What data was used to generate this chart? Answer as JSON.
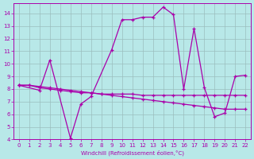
{
  "xlabel": "Windchill (Refroidissement éolien,°C)",
  "xlim": [
    -0.5,
    22.5
  ],
  "ylim": [
    4,
    14.8
  ],
  "yticks": [
    4,
    5,
    6,
    7,
    8,
    9,
    10,
    11,
    12,
    13,
    14
  ],
  "xticks": [
    0,
    1,
    2,
    3,
    4,
    5,
    6,
    7,
    8,
    9,
    10,
    11,
    12,
    13,
    14,
    15,
    16,
    17,
    18,
    19,
    20,
    21,
    22
  ],
  "bg_color": "#b8e8e8",
  "grid_color": "#9bbdbd",
  "line_color": "#aa00aa",
  "series": [
    {
      "x": [
        0,
        1,
        2,
        3,
        4,
        5,
        6,
        7,
        8,
        9,
        10,
        11,
        12,
        13,
        14,
        15,
        16,
        17,
        18,
        19,
        20,
        21,
        22
      ],
      "y": [
        8.3,
        8.3,
        8.1,
        8.0,
        7.9,
        7.8,
        7.7,
        7.7,
        7.6,
        7.6,
        7.6,
        7.6,
        7.5,
        7.5,
        7.5,
        7.5,
        7.5,
        7.5,
        7.5,
        7.5,
        7.5,
        7.5,
        7.5
      ]
    },
    {
      "x": [
        0,
        1,
        2,
        3,
        4,
        5,
        6,
        7,
        8,
        9,
        10,
        11,
        12,
        13,
        14,
        15,
        16,
        17,
        18,
        19,
        20,
        21,
        22
      ],
      "y": [
        8.3,
        8.3,
        8.2,
        8.1,
        8.0,
        7.9,
        7.8,
        7.7,
        7.6,
        7.5,
        7.4,
        7.3,
        7.2,
        7.1,
        7.0,
        6.9,
        6.8,
        6.7,
        6.6,
        6.5,
        6.4,
        6.4,
        6.4
      ]
    },
    {
      "x": [
        0,
        2,
        3,
        5,
        6,
        7,
        9,
        10,
        11,
        12,
        13,
        14,
        15,
        16,
        17,
        18,
        19,
        20,
        21,
        22
      ],
      "y": [
        8.3,
        7.9,
        10.3,
        4.1,
        6.8,
        7.4,
        11.1,
        13.5,
        13.5,
        13.7,
        13.7,
        14.5,
        13.9,
        8.0,
        12.8,
        8.1,
        5.8,
        6.1,
        9.0,
        9.1
      ]
    }
  ]
}
